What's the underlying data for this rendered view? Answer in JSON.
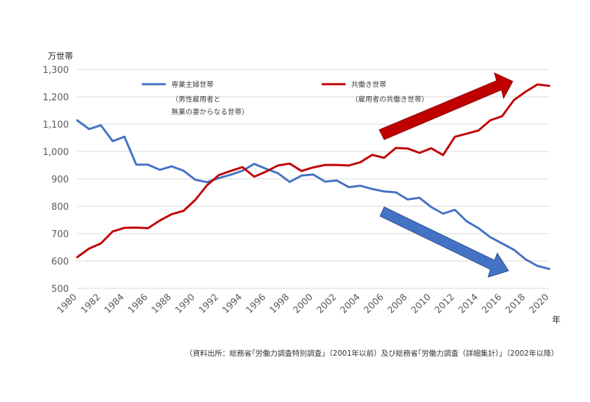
{
  "chart_data": {
    "type": "line",
    "ylabel_unit": "万世帯",
    "xlabel_unit": "年",
    "ylim": [
      500,
      1300
    ],
    "yticks": [
      500,
      600,
      700,
      800,
      900,
      1000,
      1100,
      1200,
      1300
    ],
    "ytick_labels": [
      "500",
      "600",
      "700",
      "800",
      "900",
      "1,000",
      "1,100",
      "1,200",
      "1,300"
    ],
    "xlim": [
      1980,
      2020
    ],
    "xtick_labels": [
      "1980",
      "1982",
      "1984",
      "1986",
      "1988",
      "1990",
      "1992",
      "1994",
      "1996",
      "1998",
      "2000",
      "2002",
      "2004",
      "2006",
      "2008",
      "2010",
      "2012",
      "2014",
      "2016",
      "2018",
      "2020"
    ],
    "grid": true,
    "x": [
      1980,
      1981,
      1982,
      1983,
      1984,
      1985,
      1986,
      1987,
      1988,
      1989,
      1990,
      1991,
      1992,
      1993,
      1994,
      1995,
      1996,
      1997,
      1998,
      1999,
      2000,
      2001,
      2002,
      2003,
      2004,
      2005,
      2006,
      2007,
      2008,
      2009,
      2010,
      2011,
      2012,
      2013,
      2014,
      2015,
      2016,
      2017,
      2018,
      2019,
      2020
    ],
    "series": [
      {
        "name": "専業主婦世帯",
        "legend_note_1": "（男性雇用者と",
        "legend_note_2": "無業の妻からなる世帯）",
        "color": "#4472C4",
        "values": [
          1114,
          1082,
          1096,
          1038,
          1054,
          952,
          952,
          933,
          946,
          930,
          897,
          888,
          903,
          915,
          930,
          955,
          937,
          921,
          889,
          912,
          916,
          890,
          894,
          870,
          875,
          863,
          854,
          851,
          825,
          831,
          797,
          773,
          787,
          745,
          720,
          687,
          664,
          641,
          606,
          582,
          571
        ]
      },
      {
        "name": "共働き世帯",
        "legend_note_1": "（雇用者の共働き世帯）",
        "color": "#C00000",
        "values": [
          614,
          645,
          664,
          708,
          721,
          722,
          720,
          748,
          771,
          783,
          823,
          877,
          914,
          929,
          943,
          908,
          927,
          949,
          956,
          929,
          942,
          951,
          951,
          949,
          961,
          988,
          977,
          1013,
          1011,
          995,
          1012,
          987,
          1054,
          1065,
          1077,
          1114,
          1129,
          1188,
          1219,
          1245,
          1240
        ]
      }
    ],
    "source_note": "（資料出所：総務省｢労働力調査特別調査｣（2001年以前）及び総務省｢労働力調査（詳細集計）｣（2002年以降）"
  }
}
